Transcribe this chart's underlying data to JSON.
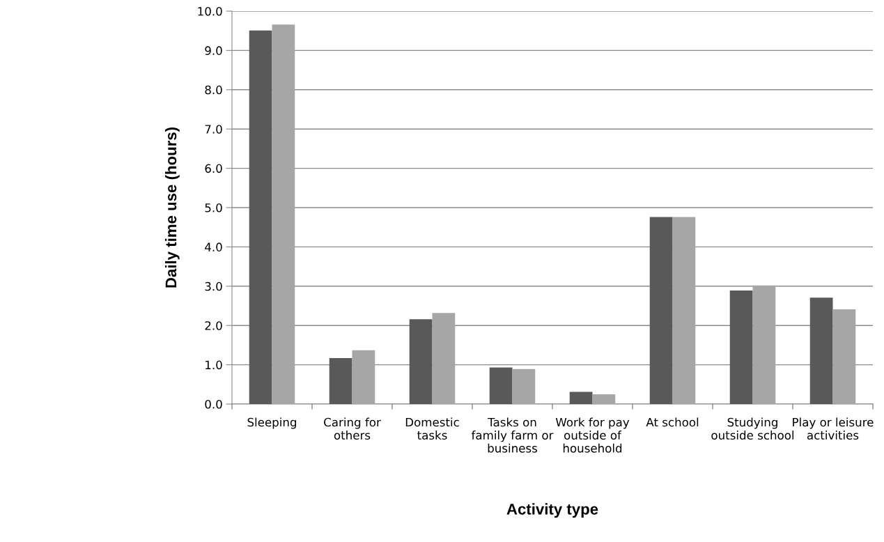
{
  "chart_data": {
    "type": "bar",
    "xlabel": "Activity type",
    "ylabel": "Daily time use (hours)",
    "categories": [
      "Sleeping",
      "Caring for\nothers",
      "Domestic\ntasks",
      "Tasks on\nfamily farm or\nbusiness",
      "Work for pay\noutside of\nhousehold",
      "At school",
      "Studying\noutside school",
      "Play or leisure\nactivities"
    ],
    "series": [
      {
        "color": "#595959",
        "values": [
          9.51,
          1.17,
          2.16,
          0.93,
          0.31,
          4.76,
          2.89,
          2.71
        ]
      },
      {
        "color": "#a6a6a6",
        "values": [
          9.66,
          1.37,
          2.32,
          0.89,
          0.25,
          4.76,
          3.02,
          2.41
        ]
      }
    ],
    "ylim": [
      0,
      10
    ],
    "yticks": [
      {
        "value": 0,
        "label": "0.0"
      },
      {
        "value": 1,
        "label": "1.0"
      },
      {
        "value": 2,
        "label": "2.0"
      },
      {
        "value": 3,
        "label": "3.0"
      },
      {
        "value": 4,
        "label": "4.0"
      },
      {
        "value": 5,
        "label": "5.0"
      },
      {
        "value": 6,
        "label": "6.0"
      },
      {
        "value": 7,
        "label": "7.0"
      },
      {
        "value": 8,
        "label": "8.0"
      },
      {
        "value": 9,
        "label": "9.0"
      },
      {
        "value": 10,
        "label": "10.0"
      }
    ],
    "grid": "y"
  }
}
